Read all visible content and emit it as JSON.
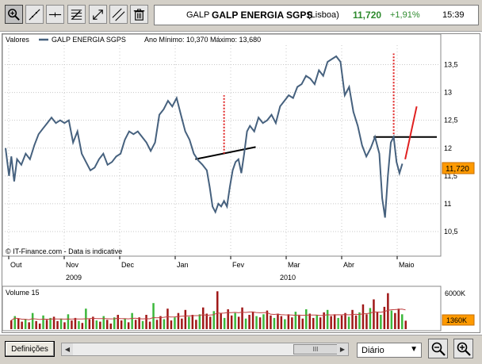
{
  "toolbar": {
    "tools": [
      {
        "name": "zoom-tool-icon",
        "active": true
      },
      {
        "name": "trendline-tool-icon",
        "active": false
      },
      {
        "name": "horizontal-line-tool-icon",
        "active": false
      },
      {
        "name": "fibonacci-tool-icon",
        "active": false
      },
      {
        "name": "move-tool-icon",
        "active": false
      },
      {
        "name": "parallel-lines-tool-icon",
        "active": false
      },
      {
        "name": "trash-icon",
        "active": false
      }
    ]
  },
  "quote": {
    "ticker": "GALP",
    "name": "GALP ENERGIA SGPS",
    "market": "(Lisboa)",
    "price": "11,720",
    "change": "+1,91%",
    "time": "15:39",
    "up_color": "#2d8a2d"
  },
  "chart": {
    "panel_label": "Valores",
    "legend_series": "GALP ENERGIA SGPS",
    "legend_range": "Ano Mínimo: 10,370 Máximo: 13,680",
    "copyright": "© IT-Finance.com - Data is indicative",
    "last_price_label": "11,720",
    "years": [
      "2009",
      "2010"
    ],
    "volume_label": "Volume 15",
    "volume_top_label": "6000K",
    "volume_last_label": "1360K",
    "colors": {
      "line": "#46617e",
      "trendline": "#000000",
      "red": "#e02020",
      "vol_up": "#3cb83c",
      "vol_down": "#a01818",
      "grid": "#c8c8c8"
    }
  },
  "chart_data": {
    "type": "line",
    "series": [
      {
        "name": "GALP ENERGIA SGPS",
        "points": [
          [
            0,
            12.0
          ],
          [
            1.2,
            11.5
          ],
          [
            2.0,
            11.85
          ],
          [
            3.0,
            11.4
          ],
          [
            4.0,
            11.8
          ],
          [
            5.5,
            11.7
          ],
          [
            7,
            11.9
          ],
          [
            8.5,
            11.8
          ],
          [
            10,
            12.05
          ],
          [
            11.5,
            12.25
          ],
          [
            13,
            12.35
          ],
          [
            14.5,
            12.45
          ],
          [
            16,
            12.55
          ],
          [
            17.5,
            12.45
          ],
          [
            19,
            12.5
          ],
          [
            20.5,
            12.45
          ],
          [
            22,
            12.5
          ],
          [
            23.5,
            12.1
          ],
          [
            25,
            12.3
          ],
          [
            26.5,
            11.9
          ],
          [
            28,
            11.75
          ],
          [
            29.5,
            11.6
          ],
          [
            31,
            11.65
          ],
          [
            32.5,
            11.8
          ],
          [
            34,
            11.9
          ],
          [
            35.5,
            11.7
          ],
          [
            37,
            11.75
          ],
          [
            38.5,
            11.85
          ],
          [
            40,
            11.9
          ],
          [
            41.5,
            12.15
          ],
          [
            43,
            12.3
          ],
          [
            44.5,
            12.25
          ],
          [
            46,
            12.3
          ],
          [
            47.5,
            12.2
          ],
          [
            49,
            12.1
          ],
          [
            50.5,
            11.95
          ],
          [
            52,
            12.1
          ],
          [
            53.5,
            12.6
          ],
          [
            55,
            12.7
          ],
          [
            56.5,
            12.85
          ],
          [
            58,
            12.75
          ],
          [
            59.5,
            12.9
          ],
          [
            61,
            12.6
          ],
          [
            62.5,
            12.3
          ],
          [
            64,
            12.15
          ],
          [
            65.5,
            11.9
          ],
          [
            67,
            11.78
          ],
          [
            68.5,
            11.7
          ],
          [
            70,
            11.6
          ],
          [
            71,
            11.3
          ],
          [
            72,
            10.95
          ],
          [
            73,
            10.85
          ],
          [
            74,
            11.0
          ],
          [
            75,
            10.95
          ],
          [
            76,
            11.05
          ],
          [
            77,
            10.95
          ],
          [
            78,
            11.3
          ],
          [
            79,
            11.6
          ],
          [
            80,
            11.75
          ],
          [
            81,
            11.8
          ],
          [
            82,
            11.55
          ],
          [
            83,
            11.9
          ],
          [
            84,
            12.3
          ],
          [
            85,
            12.4
          ],
          [
            86.5,
            12.3
          ],
          [
            88,
            12.55
          ],
          [
            89.5,
            12.45
          ],
          [
            91,
            12.5
          ],
          [
            92.5,
            12.6
          ],
          [
            94,
            12.45
          ],
          [
            95.5,
            12.75
          ],
          [
            97,
            12.85
          ],
          [
            98.5,
            12.95
          ],
          [
            100,
            12.9
          ],
          [
            101.5,
            13.1
          ],
          [
            103,
            13.15
          ],
          [
            104.5,
            13.3
          ],
          [
            106,
            13.25
          ],
          [
            107.5,
            13.15
          ],
          [
            109,
            13.4
          ],
          [
            110.5,
            13.3
          ],
          [
            112,
            13.55
          ],
          [
            113.5,
            13.6
          ],
          [
            115,
            13.65
          ],
          [
            116.5,
            13.55
          ],
          [
            118,
            12.95
          ],
          [
            119.5,
            13.1
          ],
          [
            121,
            12.65
          ],
          [
            122.5,
            12.4
          ],
          [
            124,
            12.05
          ],
          [
            125.5,
            11.85
          ],
          [
            127,
            12.0
          ],
          [
            128.5,
            12.2
          ],
          [
            130,
            11.9
          ],
          [
            131,
            11.1
          ],
          [
            132,
            10.75
          ],
          [
            133,
            11.5
          ],
          [
            134,
            12.1
          ],
          [
            135,
            12.2
          ],
          [
            136,
            11.75
          ],
          [
            137,
            11.55
          ],
          [
            138,
            11.72
          ]
        ]
      }
    ],
    "x_ticks": [
      "Out",
      "Nov",
      "Dec",
      "Jan",
      "Fev",
      "Mar",
      "Abr",
      "Maio"
    ],
    "y_ticks": [
      10.5,
      11,
      11.5,
      12,
      12.5,
      13,
      13.5
    ],
    "ylim": [
      10.2,
      13.85
    ],
    "xlim": [
      0,
      150
    ],
    "volume_series": [
      {
        "up": false,
        "v": 1400
      },
      {
        "up": true,
        "v": 2100
      },
      {
        "up": false,
        "v": 1700
      },
      {
        "up": false,
        "v": 1200
      },
      {
        "up": true,
        "v": 1600
      },
      {
        "up": false,
        "v": 1100
      },
      {
        "up": true,
        "v": 2600
      },
      {
        "up": false,
        "v": 1300
      },
      {
        "up": false,
        "v": 900
      },
      {
        "up": true,
        "v": 2200
      },
      {
        "up": false,
        "v": 1500
      },
      {
        "up": true,
        "v": 1800
      },
      {
        "up": false,
        "v": 2000
      },
      {
        "up": false,
        "v": 1300
      },
      {
        "up": true,
        "v": 1700
      },
      {
        "up": false,
        "v": 1100
      },
      {
        "up": true,
        "v": 2400
      },
      {
        "up": false,
        "v": 1400
      },
      {
        "up": false,
        "v": 1800
      },
      {
        "up": true,
        "v": 1300
      },
      {
        "up": false,
        "v": 1000
      },
      {
        "up": true,
        "v": 3300
      },
      {
        "up": false,
        "v": 1600
      },
      {
        "up": false,
        "v": 2000
      },
      {
        "up": true,
        "v": 1400
      },
      {
        "up": false,
        "v": 1200
      },
      {
        "up": true,
        "v": 2100
      },
      {
        "up": false,
        "v": 1500
      },
      {
        "up": false,
        "v": 900
      },
      {
        "up": true,
        "v": 1900
      },
      {
        "up": false,
        "v": 2300
      },
      {
        "up": false,
        "v": 1400
      },
      {
        "up": true,
        "v": 1700
      },
      {
        "up": false,
        "v": 1100
      },
      {
        "up": true,
        "v": 2600
      },
      {
        "up": false,
        "v": 1500
      },
      {
        "up": false,
        "v": 1900
      },
      {
        "up": true,
        "v": 1300
      },
      {
        "up": false,
        "v": 2300
      },
      {
        "up": false,
        "v": 1200
      },
      {
        "up": true,
        "v": 4200
      },
      {
        "up": false,
        "v": 1500
      },
      {
        "up": false,
        "v": 2100
      },
      {
        "up": true,
        "v": 1600
      },
      {
        "up": false,
        "v": 3300
      },
      {
        "up": false,
        "v": 1400
      },
      {
        "up": true,
        "v": 1900
      },
      {
        "up": false,
        "v": 2600
      },
      {
        "up": false,
        "v": 1700
      },
      {
        "up": false,
        "v": 3100
      },
      {
        "up": true,
        "v": 2000
      },
      {
        "up": false,
        "v": 2300
      },
      {
        "up": false,
        "v": 1500
      },
      {
        "up": true,
        "v": 2400
      },
      {
        "up": false,
        "v": 3500
      },
      {
        "up": false,
        "v": 2500
      },
      {
        "up": false,
        "v": 2000
      },
      {
        "up": true,
        "v": 2900
      },
      {
        "up": false,
        "v": 6100
      },
      {
        "up": false,
        "v": 2500
      },
      {
        "up": true,
        "v": 1800
      },
      {
        "up": false,
        "v": 3200
      },
      {
        "up": false,
        "v": 2200
      },
      {
        "up": true,
        "v": 2600
      },
      {
        "up": false,
        "v": 2000
      },
      {
        "up": false,
        "v": 3500
      },
      {
        "up": true,
        "v": 1700
      },
      {
        "up": false,
        "v": 2300
      },
      {
        "up": false,
        "v": 2800
      },
      {
        "up": true,
        "v": 2100
      },
      {
        "up": false,
        "v": 1900
      },
      {
        "up": true,
        "v": 2400
      },
      {
        "up": false,
        "v": 3000
      },
      {
        "up": false,
        "v": 2200
      },
      {
        "up": true,
        "v": 1800
      },
      {
        "up": false,
        "v": 2500
      },
      {
        "up": false,
        "v": 2100
      },
      {
        "up": true,
        "v": 1600
      },
      {
        "up": false,
        "v": 2400
      },
      {
        "up": false,
        "v": 1900
      },
      {
        "up": true,
        "v": 2800
      },
      {
        "up": false,
        "v": 2200
      },
      {
        "up": false,
        "v": 1700
      },
      {
        "up": true,
        "v": 3200
      },
      {
        "up": false,
        "v": 2500
      },
      {
        "up": false,
        "v": 1800
      },
      {
        "up": true,
        "v": 2300
      },
      {
        "up": false,
        "v": 1900
      },
      {
        "up": false,
        "v": 2700
      },
      {
        "up": true,
        "v": 3100
      },
      {
        "up": false,
        "v": 2100
      },
      {
        "up": false,
        "v": 2400
      },
      {
        "up": true,
        "v": 1800
      },
      {
        "up": false,
        "v": 2200
      },
      {
        "up": false,
        "v": 2600
      },
      {
        "up": true,
        "v": 2000
      },
      {
        "up": false,
        "v": 3100
      },
      {
        "up": false,
        "v": 2200
      },
      {
        "up": true,
        "v": 2700
      },
      {
        "up": false,
        "v": 4000
      },
      {
        "up": false,
        "v": 2400
      },
      {
        "up": true,
        "v": 3400
      },
      {
        "up": false,
        "v": 4800
      },
      {
        "up": false,
        "v": 2700
      },
      {
        "up": true,
        "v": 2300
      },
      {
        "up": false,
        "v": 3600
      },
      {
        "up": false,
        "v": 5800
      },
      {
        "up": true,
        "v": 3000
      },
      {
        "up": false,
        "v": 2600
      },
      {
        "up": false,
        "v": 3300
      },
      {
        "up": true,
        "v": 2400
      },
      {
        "up": false,
        "v": 1360
      }
    ],
    "volume_ylim": [
      0,
      6400
    ],
    "annotations": [
      {
        "kind": "trendline",
        "from": [
          66,
          11.8
        ],
        "to": [
          87,
          12.02
        ]
      },
      {
        "kind": "vertical-dotted",
        "x": 76,
        "from": 11.9,
        "to": 12.95
      },
      {
        "kind": "trendline",
        "from": [
          128,
          12.2
        ],
        "to": [
          150,
          12.2
        ]
      },
      {
        "kind": "vertical-dotted",
        "x": 135,
        "from": 12.25,
        "to": 13.7
      },
      {
        "kind": "red-segment",
        "from": [
          139,
          11.8
        ],
        "to": [
          143,
          12.75
        ]
      }
    ]
  },
  "bottombar": {
    "definitions_label": "Definições",
    "scroll_thumb": "III",
    "scroll_left": "◀",
    "scroll_right": "▶",
    "period": "Diário",
    "period_chev": "▼"
  }
}
